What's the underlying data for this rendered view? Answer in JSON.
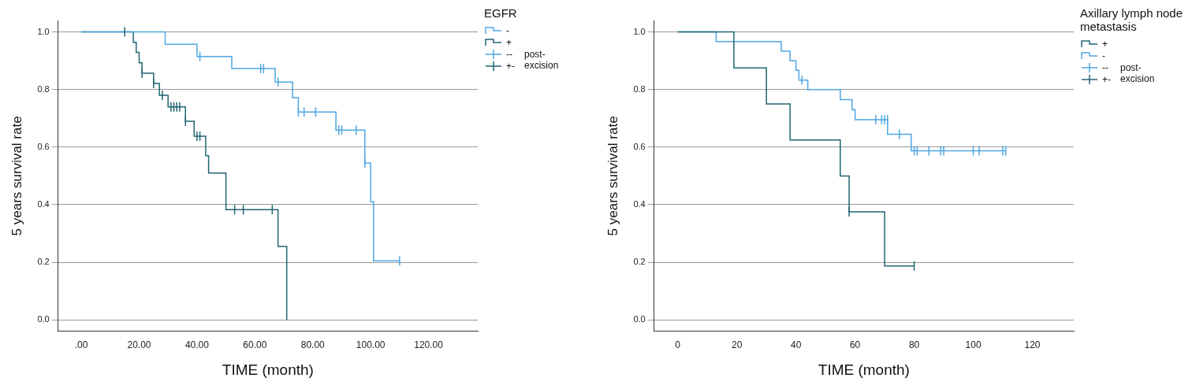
{
  "chart_data": [
    {
      "type": "line",
      "legend_title": "EGFR",
      "legend": "right",
      "grid": true,
      "x_label": "TIME (month)",
      "y_label": "5 years survival rate",
      "annotation": "post-excision",
      "xlim": [
        -8,
        137
      ],
      "xticks": [
        {
          "value": 0,
          "label": ".00"
        },
        {
          "value": 20,
          "label": "20.00"
        },
        {
          "value": 40,
          "label": "40.00"
        },
        {
          "value": 60,
          "label": "60.00"
        },
        {
          "value": 80,
          "label": "80.00"
        },
        {
          "value": 100,
          "label": "100.00"
        },
        {
          "value": 120,
          "label": "120.00"
        }
      ],
      "ylim": [
        -0.04,
        1.04
      ],
      "yticks": [
        {
          "value": 0,
          "label": "0.0"
        },
        {
          "value": 0.2,
          "label": "0.2"
        },
        {
          "value": 0.4,
          "label": "0.4"
        },
        {
          "value": 0.6,
          "label": "0.6"
        },
        {
          "value": 0.8,
          "label": "0.8"
        },
        {
          "value": 1,
          "label": "1.0"
        }
      ],
      "series": [
        {
          "name": "-",
          "color": "#4fa6e2",
          "line_style": "step",
          "x": [
            0,
            29,
            40,
            52,
            67,
            73,
            75,
            88,
            98,
            100,
            101,
            110
          ],
          "values": [
            1,
            0.957,
            0.915,
            0.873,
            0.826,
            0.772,
            0.722,
            0.659,
            0.545,
            0.41,
            0.205,
            0.205
          ]
        },
        {
          "name": "+",
          "color": "#1f6672",
          "line_style": "step",
          "x": [
            0,
            18,
            19,
            20,
            21,
            25,
            27,
            30,
            36,
            39,
            43,
            44,
            50,
            68,
            71
          ],
          "values": [
            1,
            0.964,
            0.929,
            0.893,
            0.857,
            0.821,
            0.78,
            0.74,
            0.69,
            0.638,
            0.57,
            0.51,
            0.383,
            0.255,
            0
          ]
        },
        {
          "name": "--",
          "color": "#4fa6e2",
          "marker": "tick",
          "x": [
            41,
            62,
            63,
            68,
            75,
            77,
            81,
            89,
            90,
            95,
            98,
            110
          ],
          "values": [
            0.915,
            0.873,
            0.873,
            0.826,
            0.722,
            0.722,
            0.722,
            0.659,
            0.659,
            0.659,
            0.545,
            0.205
          ]
        },
        {
          "name": "+-",
          "color": "#1f6672",
          "marker": "tick",
          "x": [
            15,
            21,
            25,
            28,
            31,
            32,
            33,
            34,
            36,
            40,
            41,
            53,
            56,
            66
          ],
          "values": [
            1,
            0.857,
            0.821,
            0.78,
            0.74,
            0.74,
            0.74,
            0.74,
            0.69,
            0.638,
            0.638,
            0.383,
            0.383,
            0.383
          ]
        }
      ]
    },
    {
      "type": "line",
      "legend_title": "Axillary lymph node metastasis",
      "legend": "right",
      "grid": true,
      "x_label": "TIME (month)",
      "y_label": "5 years survival rate",
      "annotation": "post-excision",
      "xlim": [
        -8,
        134
      ],
      "xticks": [
        0,
        20,
        40,
        60,
        80,
        100,
        120
      ],
      "ylim": [
        -0.04,
        1.04
      ],
      "yticks": [
        {
          "value": 0,
          "label": "0.0"
        },
        {
          "value": 0.2,
          "label": "0.2"
        },
        {
          "value": 0.4,
          "label": "0.4"
        },
        {
          "value": 0.6,
          "label": "0.6"
        },
        {
          "value": 0.8,
          "label": "0.8"
        },
        {
          "value": 1,
          "label": "1.0"
        }
      ],
      "series": [
        {
          "name": "+",
          "color": "#1f6672",
          "line_style": "step",
          "x": [
            0,
            19,
            30,
            38,
            55,
            58,
            70,
            80
          ],
          "values": [
            1,
            0.875,
            0.75,
            0.625,
            0.5,
            0.375,
            0.1875,
            0.1875
          ]
        },
        {
          "name": "-",
          "color": "#4fa6e2",
          "line_style": "step",
          "x": [
            0,
            13,
            35,
            38,
            40,
            41,
            44,
            55,
            59,
            60,
            71,
            79,
            111
          ],
          "values": [
            1,
            0.967,
            0.933,
            0.9,
            0.867,
            0.833,
            0.8,
            0.765,
            0.73,
            0.695,
            0.645,
            0.587,
            0.587
          ]
        },
        {
          "name": "--",
          "color": "#4fa6e2",
          "marker": "tick",
          "x": [
            42,
            67,
            69,
            70,
            71,
            75,
            80,
            81,
            85,
            89,
            90,
            100,
            102,
            110,
            111
          ],
          "values": [
            0.833,
            0.695,
            0.695,
            0.695,
            0.695,
            0.645,
            0.587,
            0.587,
            0.587,
            0.587,
            0.587,
            0.587,
            0.587,
            0.587,
            0.587
          ]
        },
        {
          "name": "+-",
          "color": "#1f6672",
          "marker": "tick",
          "x": [
            58,
            80
          ],
          "values": [
            0.375,
            0.1875
          ]
        }
      ]
    }
  ]
}
